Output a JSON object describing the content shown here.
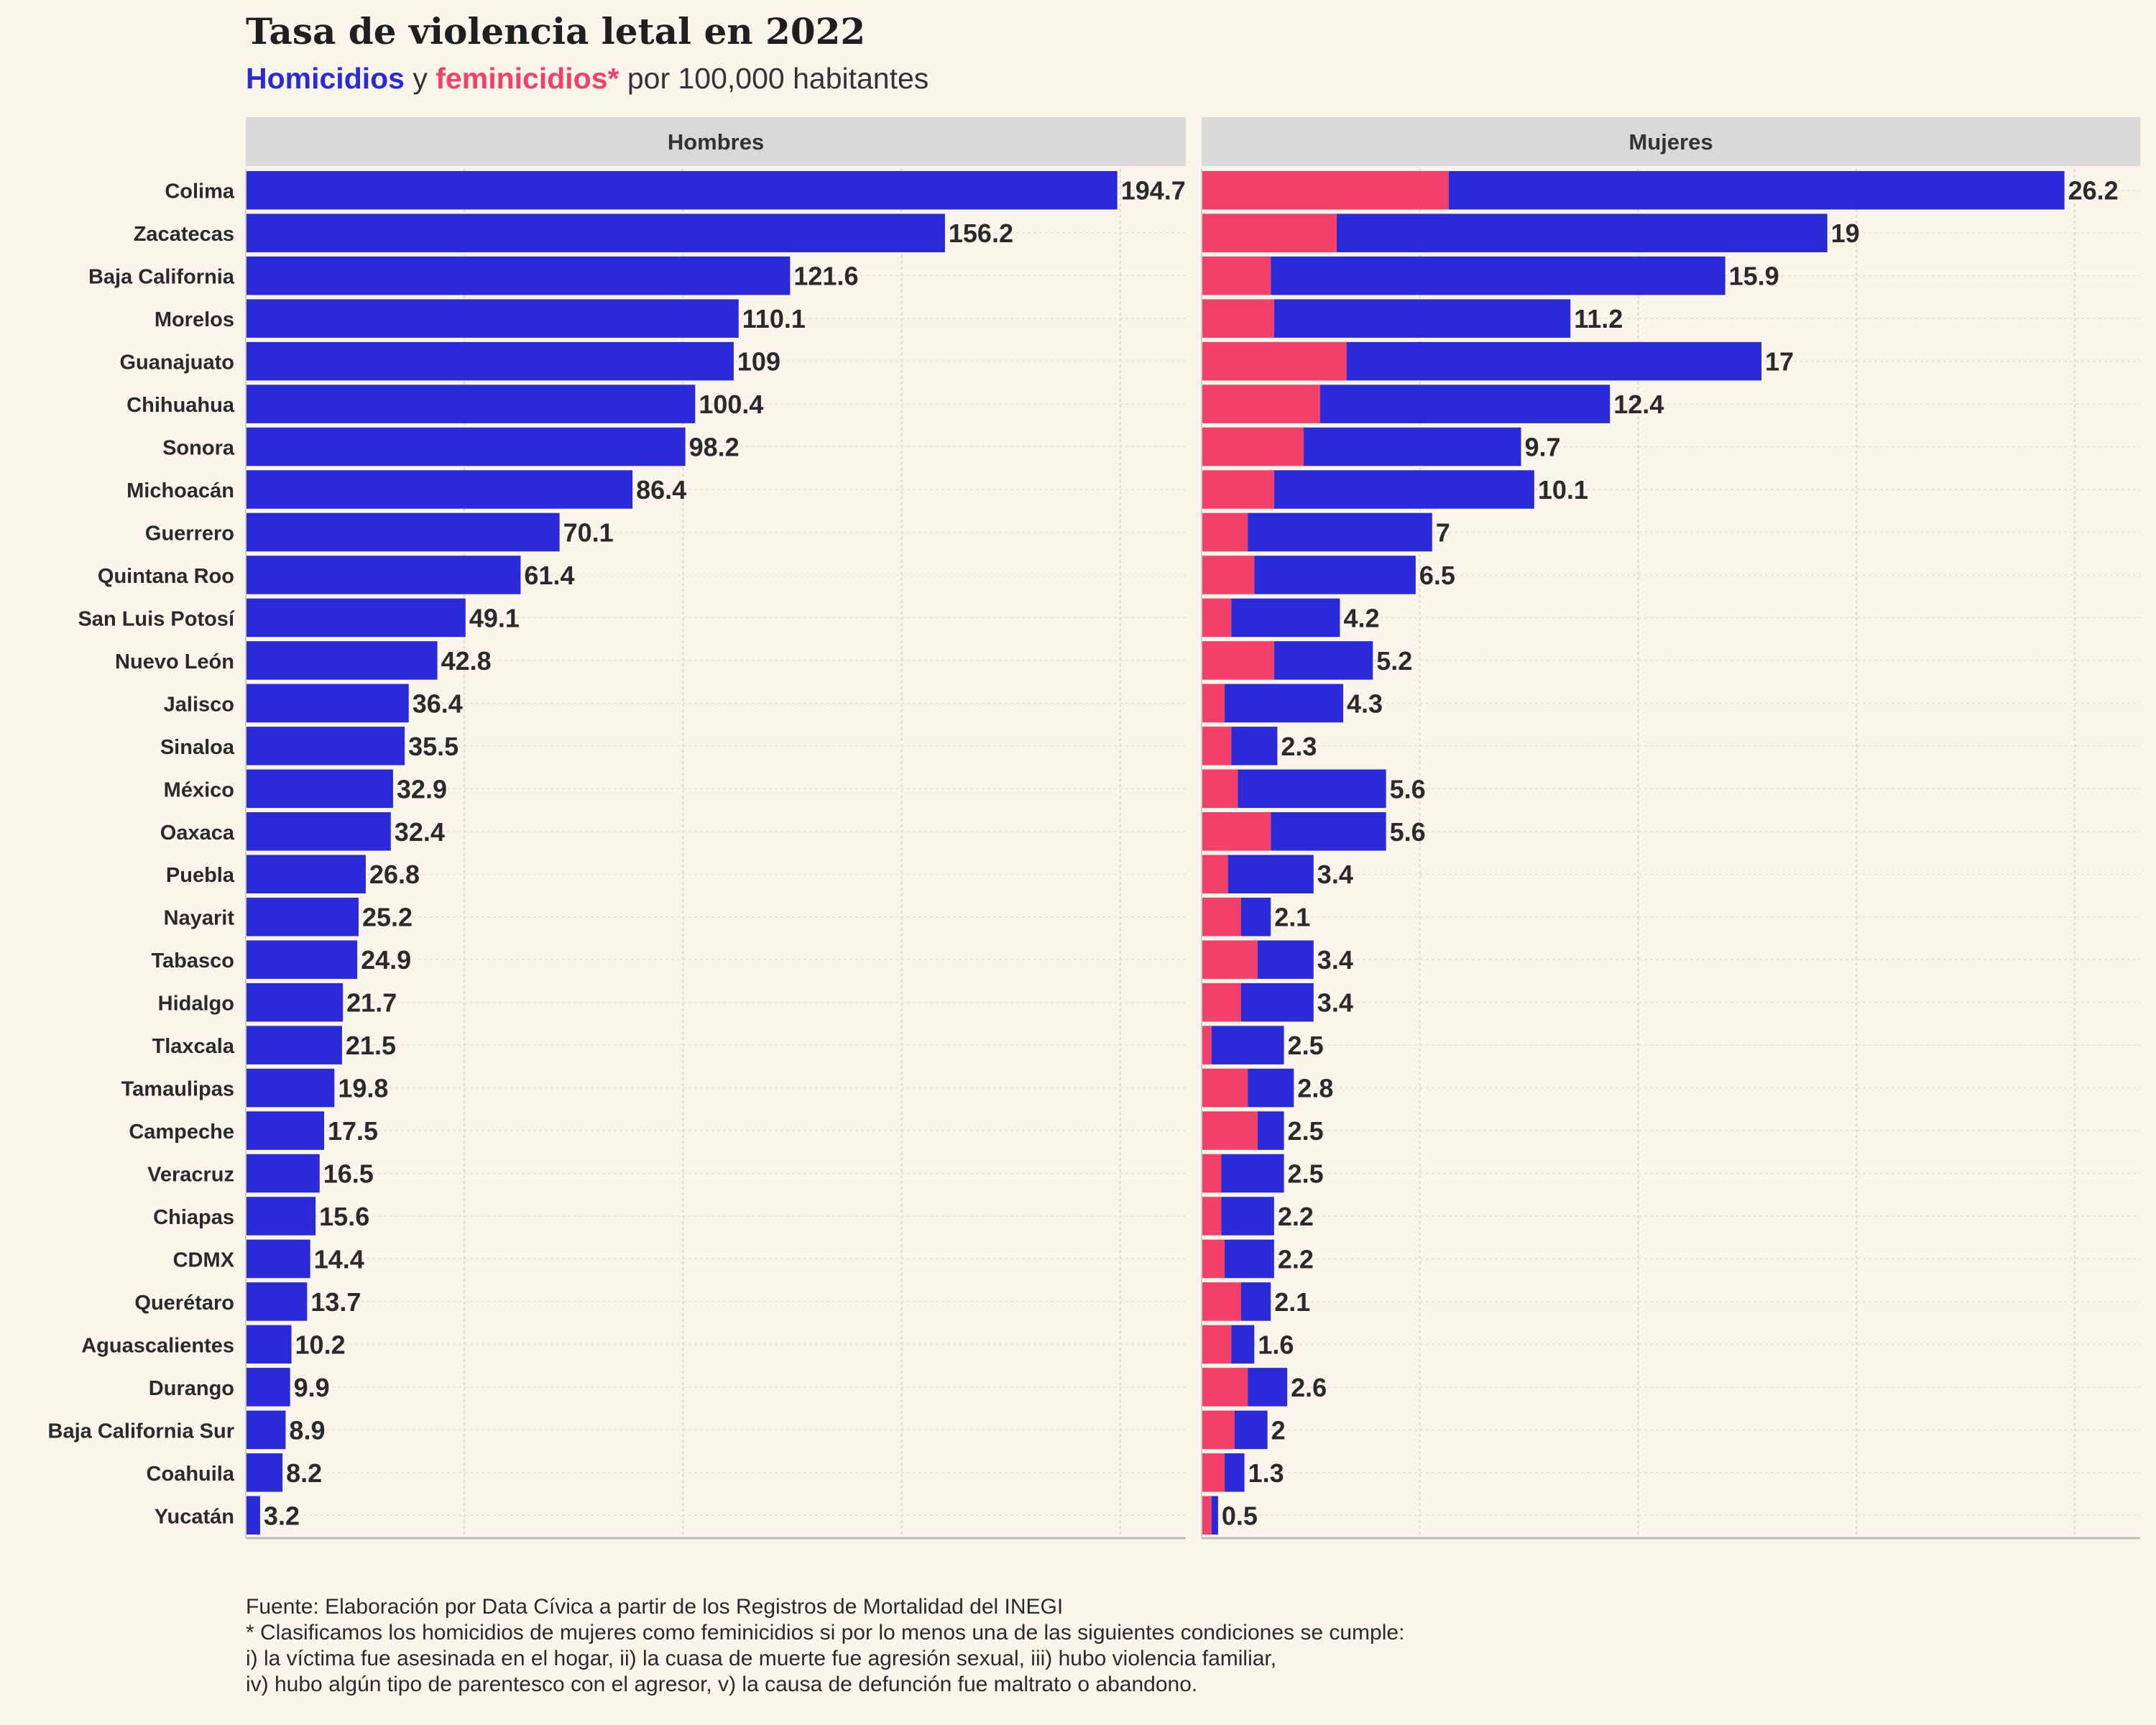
{
  "title": "Tasa de violencia letal en 2022",
  "subtitle": {
    "part1": "Homicidios",
    "part2": " y ",
    "part3": "feminicidios*",
    "part4": " por 100,000 habitantes"
  },
  "colors": {
    "homicidios": "#2a2ad8",
    "feminicidios": "#f2406a",
    "background": "#f9f5ea",
    "strip": "#d9d9d9"
  },
  "footer": [
    "Fuente: Elaboración por Data Cívica a partir de los Registros de Mortalidad del INEGI",
    "* Clasificamos los homicidios de mujeres como feminicidios si por lo menos una de las siguientes condiciones se cumple:",
    "i) la víctima fue asesinada en el hogar, ii) la cuasa de muerte fue agresión sexual, iii) hubo violencia familiar,",
    "iv) hubo algún tipo de parentesco con el agresor, v) la causa de defunción fue maltrato o abandono."
  ],
  "chart_data": {
    "type": "bar",
    "orientation": "horizontal",
    "categories": [
      "Colima",
      "Zacatecas",
      "Baja California",
      "Morelos",
      "Guanajuato",
      "Chihuahua",
      "Sonora",
      "Michoacán",
      "Guerrero",
      "Quintana Roo",
      "San Luis Potosí",
      "Nuevo León",
      "Jalisco",
      "Sinaloa",
      "México",
      "Oaxaca",
      "Puebla",
      "Nayarit",
      "Tabasco",
      "Hidalgo",
      "Tlaxcala",
      "Tamaulipas",
      "Campeche",
      "Veracruz",
      "Chiapas",
      "CDMX",
      "Querétaro",
      "Aguascalientes",
      "Durango",
      "Baja California Sur",
      "Coahuila",
      "Yucatán"
    ],
    "panels": [
      {
        "name": "Hombres",
        "xlim": [
          0,
          210
        ],
        "series": [
          {
            "values": [
              194.7,
              156.2,
              121.6,
              110.1,
              109,
              100.4,
              98.2,
              86.4,
              70.1,
              61.4,
              49.1,
              42.8,
              36.4,
              35.5,
              32.9,
              32.4,
              26.8,
              25.2,
              24.9,
              21.7,
              21.5,
              19.8,
              17.5,
              16.5,
              15.6,
              14.4,
              13.7,
              10.2,
              9.9,
              8.9,
              8.2,
              3.2
            ]
          }
        ],
        "labels": [
          "194.7",
          "156.2",
          "121.6",
          "110.1",
          "109",
          "100.4",
          "98.2",
          "86.4",
          "70.1",
          "61.4",
          "49.1",
          "42.8",
          "36.4",
          "35.5",
          "32.9",
          "32.4",
          "26.8",
          "25.2",
          "24.9",
          "21.7",
          "21.5",
          "19.8",
          "17.5",
          "16.5",
          "15.6",
          "14.4",
          "13.7",
          "10.2",
          "9.9",
          "8.9",
          "8.2",
          "3.2"
        ]
      },
      {
        "name": "Mujeres",
        "xlim": [
          0,
          28.5
        ],
        "stacked": true,
        "series": [
          {
            "values": [
              7.5,
              4.1,
              2.1,
              2.2,
              4.4,
              3.6,
              3.1,
              2.2,
              1.4,
              1.6,
              0.9,
              2.2,
              0.7,
              0.9,
              1.1,
              2.1,
              0.8,
              1.2,
              1.7,
              1.2,
              0.3,
              1.4,
              1.7,
              0.6,
              0.6,
              0.7,
              1.2,
              0.9,
              1.4,
              1.0,
              0.7,
              0.3
            ]
          },
          {
            "values": [
              18.7,
              14.9,
              13.8,
              9.0,
              12.6,
              8.8,
              6.6,
              7.9,
              5.6,
              4.9,
              3.3,
              3.0,
              3.6,
              1.4,
              4.5,
              3.5,
              2.6,
              0.9,
              1.7,
              2.2,
              2.2,
              1.4,
              0.8,
              1.9,
              1.6,
              1.5,
              0.9,
              0.7,
              1.2,
              1.0,
              0.6,
              0.2
            ]
          }
        ],
        "labels": [
          "26.2",
          "19",
          "15.9",
          "11.2",
          "17",
          "12.4",
          "9.7",
          "10.1",
          "7",
          "6.5",
          "4.2",
          "5.2",
          "4.3",
          "2.3",
          "5.6",
          "5.6",
          "3.4",
          "2.1",
          "3.4",
          "3.4",
          "2.5",
          "2.8",
          "2.5",
          "2.5",
          "2.2",
          "2.2",
          "2.1",
          "1.6",
          "2.6",
          "2",
          "1.3",
          "0.5"
        ]
      }
    ],
    "grid": true,
    "legend": "subtitle"
  }
}
